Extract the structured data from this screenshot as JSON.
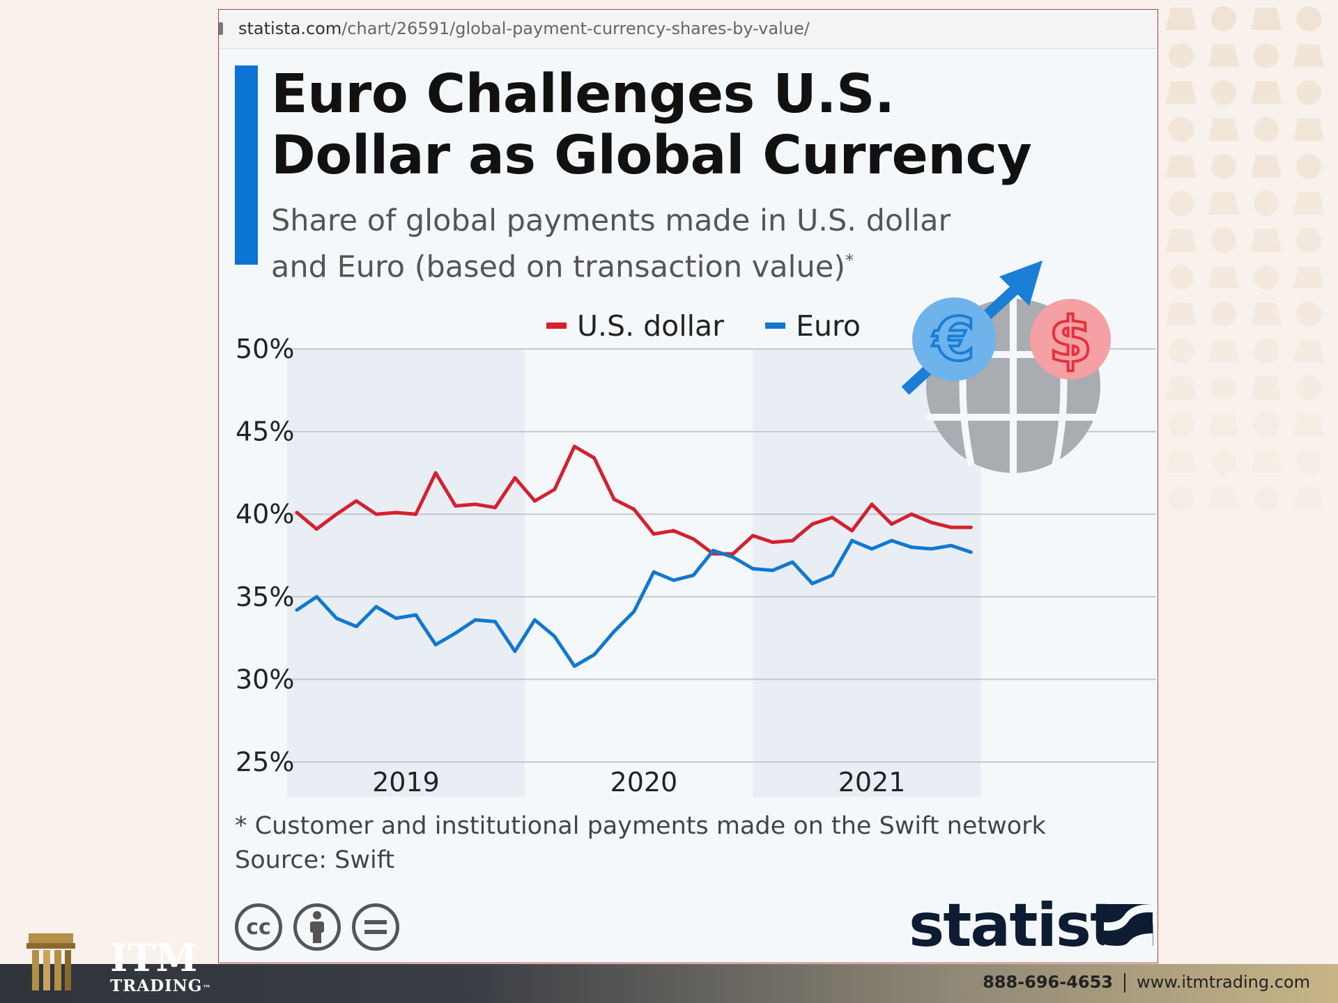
{
  "browser": {
    "url_host": "statista.com",
    "url_path": "/chart/26591/global-payment-currency-shares-by-value/"
  },
  "chart_data": {
    "type": "line",
    "title": "Euro Challenges U.S. Dollar as Global Currency",
    "subtitle": "Share of global payments made in U.S. dollar and Euro (based on transaction value)",
    "subtitle_mark": "*",
    "ylim": [
      25,
      50
    ],
    "yticks": [
      "50%",
      "45%",
      "40%",
      "35%",
      "30%",
      "25%"
    ],
    "ytick_values": [
      50,
      45,
      40,
      35,
      30,
      25
    ],
    "x_labels": [
      "2019",
      "2020",
      "2021"
    ],
    "x_label_positions": [
      5.5,
      17.5,
      29
    ],
    "shaded_years": [
      [
        0,
        11.5
      ],
      [
        23.5,
        34.5
      ]
    ],
    "x": [
      0,
      1,
      2,
      3,
      4,
      5,
      6,
      7,
      8,
      9,
      10,
      11,
      12,
      13,
      14,
      15,
      16,
      17,
      18,
      19,
      20,
      21,
      22,
      23,
      24,
      25,
      26,
      27,
      28,
      29,
      30,
      31,
      32,
      33,
      34
    ],
    "legend_position": "top",
    "series": [
      {
        "name": "U.S. dollar",
        "color": "#d5202f",
        "values": [
          40.1,
          39.1,
          40.0,
          40.8,
          40.0,
          40.1,
          40.0,
          42.5,
          40.5,
          40.6,
          40.4,
          42.2,
          40.8,
          41.5,
          44.1,
          43.4,
          40.9,
          40.3,
          38.8,
          39.0,
          38.5,
          37.6,
          37.6,
          38.7,
          38.3,
          38.4,
          39.4,
          39.8,
          39.0,
          40.6,
          39.4,
          40.0,
          39.5,
          39.2,
          39.2
        ]
      },
      {
        "name": "Euro",
        "color": "#1178d0",
        "values": [
          34.2,
          35.0,
          33.7,
          33.2,
          34.4,
          33.7,
          33.9,
          32.1,
          32.8,
          33.6,
          33.5,
          31.7,
          33.6,
          32.6,
          30.8,
          31.5,
          32.9,
          34.1,
          36.5,
          36.0,
          36.3,
          37.8,
          37.4,
          36.7,
          36.6,
          37.1,
          35.8,
          36.3,
          38.4,
          37.9,
          38.4,
          38.0,
          37.9,
          38.1,
          37.7
        ]
      }
    ]
  },
  "icon": {
    "name": "globe-euro-dollar-icon",
    "arrow_color": "#1a7ed6",
    "euro_color": "#6fb3ec",
    "dollar_color": "#f5a0a4",
    "globe_color": "#a9acb0"
  },
  "footnote": {
    "note": "* Customer and institutional payments made on the Swift network",
    "source": "Source: Swift"
  },
  "license_icons": [
    "cc-icon",
    "attribution-icon",
    "no-derivatives-icon"
  ],
  "brand": {
    "statista": "statista"
  },
  "footer": {
    "logo_main": "ITM",
    "logo_sub": "TRADING",
    "logo_tm": "™",
    "phone": "888-696-4653",
    "website": "www.itmtrading.com"
  }
}
